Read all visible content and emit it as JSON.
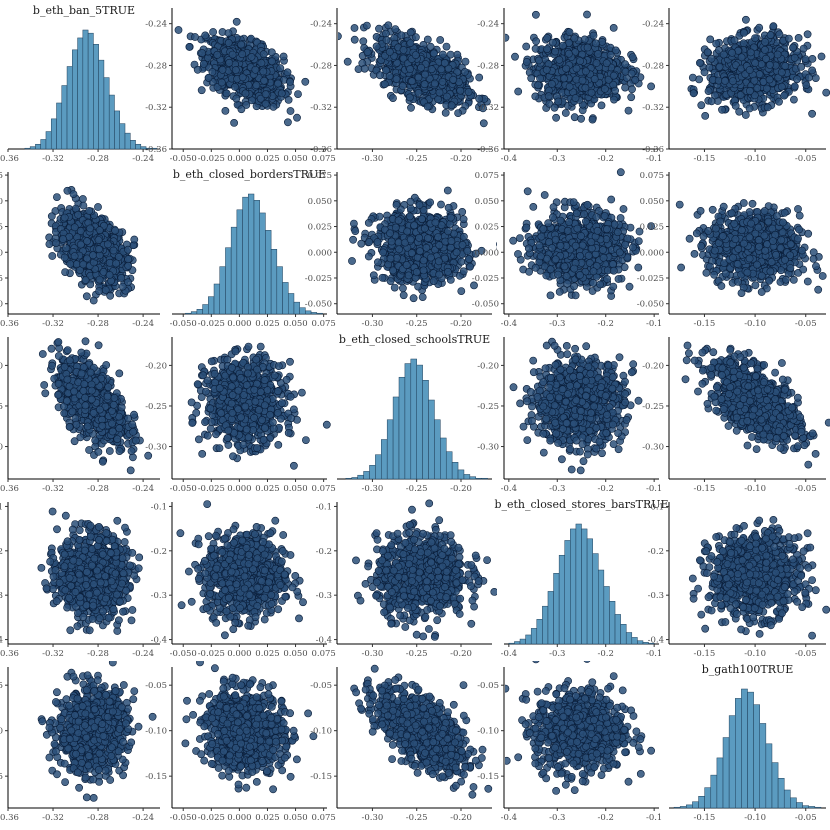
{
  "chart_data": {
    "type": "pairs",
    "colors": {
      "hist_fill": "#5b9bc0",
      "hist_stroke": "#1f3f5a",
      "point_fill": "#2a4f78",
      "point_stroke": "#0a1e3a"
    },
    "variables": [
      {
        "name": "b_eth_ban_5TRUE",
        "mean": -0.285,
        "sd": 0.015,
        "lim": [
          -0.36,
          -0.225
        ],
        "ticks": [
          -0.36,
          -0.32,
          -0.28,
          -0.24
        ],
        "tick_labels": [
          "-0.36",
          "-0.32",
          "-0.28",
          "-0.24"
        ],
        "hist": [
          1,
          3,
          6,
          12,
          22,
          38,
          58,
          80,
          104,
          125,
          140,
          150,
          146,
          132,
          112,
          90,
          68,
          48,
          32,
          20,
          11,
          6,
          3,
          1,
          1
        ],
        "hist_range": [
          -0.345,
          -0.228
        ]
      },
      {
        "name": "b_eth_closed_bordersTRUE",
        "mean": 0.005,
        "sd": 0.017,
        "lim": [
          -0.06,
          0.078
        ],
        "ticks": [
          -0.05,
          -0.025,
          0,
          0.025,
          0.05,
          0.075
        ],
        "tick_labels": [
          "-0.050",
          "-0.025",
          "0.000",
          "0.025",
          "0.050",
          "0.075"
        ],
        "hist": [
          1,
          3,
          6,
          12,
          22,
          38,
          60,
          84,
          110,
          132,
          148,
          152,
          144,
          128,
          106,
          82,
          60,
          40,
          26,
          15,
          8,
          4,
          2,
          1
        ],
        "hist_range": [
          -0.048,
          0.074
        ]
      },
      {
        "name": "b_eth_closed_schoolsTRUE",
        "mean": -0.245,
        "sd": 0.025,
        "lim": [
          -0.34,
          -0.165
        ],
        "ticks": [
          -0.3,
          -0.25,
          -0.2
        ],
        "tick_labels": [
          "-0.30",
          "-0.25",
          "-0.20"
        ],
        "hist": [
          1,
          2,
          5,
          10,
          18,
          32,
          52,
          78,
          108,
          134,
          152,
          158,
          150,
          130,
          104,
          78,
          54,
          36,
          22,
          12,
          6,
          3,
          1,
          1
        ],
        "hist_range": [
          -0.33,
          -0.17
        ]
      },
      {
        "name": "b_eth_closed_stores_barsTRUE",
        "mean": -0.255,
        "sd": 0.045,
        "lim": [
          -0.41,
          -0.09
        ],
        "ticks": [
          -0.4,
          -0.3,
          -0.2,
          -0.1
        ],
        "tick_labels": [
          "-0.4",
          "-0.3",
          "-0.2",
          "-0.1"
        ],
        "hist": [
          1,
          3,
          6,
          11,
          19,
          30,
          46,
          64,
          86,
          108,
          126,
          140,
          146,
          140,
          128,
          110,
          90,
          70,
          52,
          36,
          24,
          14,
          8,
          4,
          2,
          1
        ],
        "hist_range": [
          -0.4,
          -0.1
        ]
      },
      {
        "name": "b_gath100TRUE",
        "mean": -0.1,
        "sd": 0.022,
        "lim": [
          -0.185,
          -0.03
        ],
        "ticks": [
          -0.15,
          -0.1,
          -0.05
        ],
        "tick_labels": [
          "-0.15",
          "-0.10",
          "-0.05"
        ],
        "hist": [
          1,
          2,
          4,
          8,
          15,
          26,
          42,
          64,
          90,
          118,
          140,
          152,
          148,
          132,
          108,
          82,
          58,
          38,
          23,
          13,
          7,
          3,
          2,
          1
        ],
        "hist_range": [
          -0.18,
          -0.035
        ]
      }
    ],
    "correlations": [
      [
        1.0,
        -0.45,
        -0.55,
        0.0,
        0.1
      ],
      [
        -0.45,
        1.0,
        -0.05,
        0.0,
        -0.1
      ],
      [
        -0.55,
        -0.05,
        1.0,
        0.05,
        -0.6
      ],
      [
        0.0,
        0.0,
        0.05,
        1.0,
        0.0
      ],
      [
        0.1,
        -0.1,
        -0.6,
        0.0,
        1.0
      ]
    ],
    "samples_per_panel": 900
  }
}
